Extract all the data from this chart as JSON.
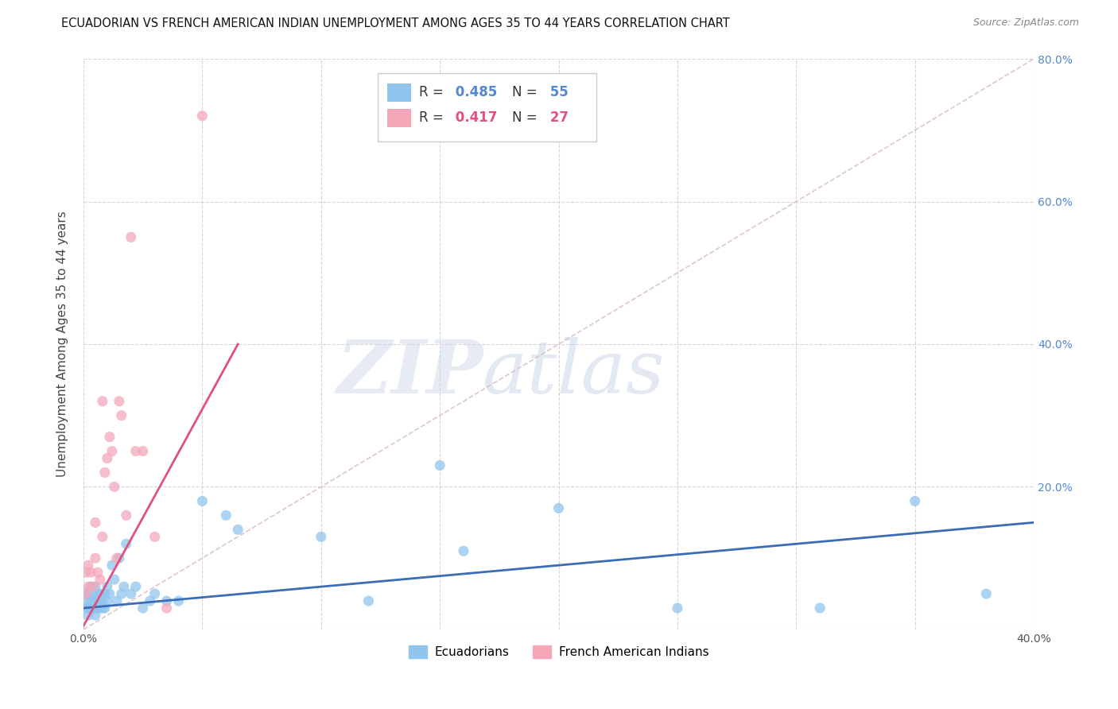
{
  "title": "ECUADORIAN VS FRENCH AMERICAN INDIAN UNEMPLOYMENT AMONG AGES 35 TO 44 YEARS CORRELATION CHART",
  "source": "Source: ZipAtlas.com",
  "ylabel": "Unemployment Among Ages 35 to 44 years",
  "xlim": [
    0.0,
    0.4
  ],
  "ylim": [
    0.0,
    0.8
  ],
  "blue_R": 0.485,
  "blue_N": 55,
  "pink_R": 0.417,
  "pink_N": 27,
  "blue_color": "#92C5EE",
  "pink_color": "#F4A7B9",
  "blue_line_color": "#3A6DB5",
  "pink_line_color": "#E05080",
  "diagonal_color": "#D8B8C0",
  "watermark_zip": "ZIP",
  "watermark_atlas": "atlas",
  "background_color": "#FFFFFF",
  "blue_scatter_x": [
    0.001,
    0.001,
    0.001,
    0.002,
    0.002,
    0.002,
    0.003,
    0.003,
    0.003,
    0.004,
    0.004,
    0.004,
    0.005,
    0.005,
    0.005,
    0.005,
    0.006,
    0.006,
    0.006,
    0.007,
    0.007,
    0.007,
    0.008,
    0.008,
    0.009,
    0.009,
    0.01,
    0.01,
    0.011,
    0.012,
    0.013,
    0.014,
    0.015,
    0.016,
    0.017,
    0.018,
    0.02,
    0.022,
    0.025,
    0.028,
    0.03,
    0.035,
    0.04,
    0.05,
    0.06,
    0.065,
    0.1,
    0.12,
    0.15,
    0.16,
    0.2,
    0.25,
    0.31,
    0.35,
    0.38
  ],
  "blue_scatter_y": [
    0.03,
    0.04,
    0.05,
    0.02,
    0.03,
    0.05,
    0.03,
    0.04,
    0.06,
    0.03,
    0.04,
    0.05,
    0.02,
    0.03,
    0.04,
    0.06,
    0.03,
    0.04,
    0.05,
    0.03,
    0.04,
    0.05,
    0.03,
    0.04,
    0.03,
    0.05,
    0.04,
    0.06,
    0.05,
    0.09,
    0.07,
    0.04,
    0.1,
    0.05,
    0.06,
    0.12,
    0.05,
    0.06,
    0.03,
    0.04,
    0.05,
    0.04,
    0.04,
    0.18,
    0.16,
    0.14,
    0.13,
    0.04,
    0.23,
    0.11,
    0.17,
    0.03,
    0.03,
    0.18,
    0.05
  ],
  "pink_scatter_x": [
    0.001,
    0.001,
    0.002,
    0.002,
    0.003,
    0.004,
    0.005,
    0.005,
    0.006,
    0.007,
    0.008,
    0.008,
    0.009,
    0.01,
    0.011,
    0.012,
    0.013,
    0.014,
    0.015,
    0.016,
    0.018,
    0.02,
    0.022,
    0.025,
    0.03,
    0.035,
    0.05
  ],
  "pink_scatter_y": [
    0.05,
    0.08,
    0.06,
    0.09,
    0.08,
    0.06,
    0.1,
    0.15,
    0.08,
    0.07,
    0.13,
    0.32,
    0.22,
    0.24,
    0.27,
    0.25,
    0.2,
    0.1,
    0.32,
    0.3,
    0.16,
    0.55,
    0.25,
    0.25,
    0.13,
    0.03,
    0.72
  ],
  "pink_line_x_start": 0.0,
  "pink_line_x_end": 0.065,
  "blue_line_x_start": 0.0,
  "blue_line_x_end": 0.4,
  "blue_line_y_start": 0.03,
  "blue_line_y_end": 0.15,
  "pink_line_y_start": 0.005,
  "pink_line_y_end": 0.4
}
